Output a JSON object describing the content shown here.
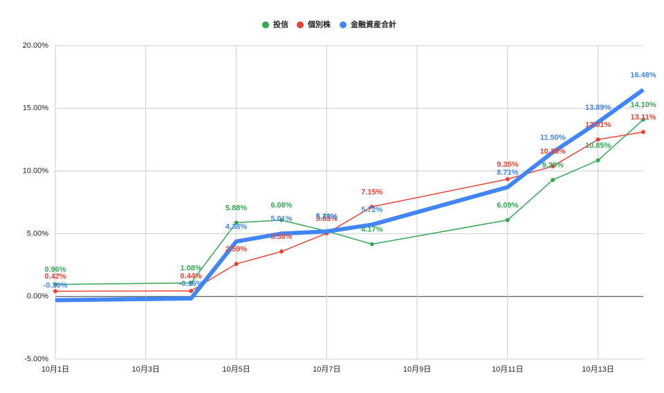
{
  "chart_data": {
    "type": "line",
    "x": [
      "10月1日",
      "10月4日",
      "10月5日",
      "10月6日",
      "10月7日",
      "10月8日",
      "10月11日",
      "10月12日",
      "10月13日",
      "10月14日"
    ],
    "xticks": [
      "10月1日",
      "10月3日",
      "10月5日",
      "10月7日",
      "10月9日",
      "10月11日",
      "10月13日"
    ],
    "ylim": [
      -5,
      20
    ],
    "yticks": [
      {
        "value": -5,
        "label": "-5.00%"
      },
      {
        "value": 0,
        "label": "0.00%"
      },
      {
        "value": 5,
        "label": "5.00%"
      },
      {
        "value": 10,
        "label": "10.00%"
      },
      {
        "value": 15,
        "label": "15.00%"
      },
      {
        "value": 20,
        "label": "20.00%"
      }
    ],
    "grid": true,
    "legend": "top",
    "series": [
      {
        "name": "投信",
        "color": "#34a853",
        "width": 1.5,
        "dots": true,
        "values": [
          0.96,
          1.08,
          5.88,
          6.08,
          5.21,
          4.17,
          6.09,
          9.29,
          10.85,
          14.1
        ],
        "value_labels": [
          "0.96%",
          "1.08%",
          "5.88%",
          "6.08%",
          "5.21%",
          "4.17%",
          "6.09%",
          "9.29%",
          "10.85%",
          "14.10%"
        ]
      },
      {
        "name": "個別株",
        "color": "#ea4335",
        "width": 1.5,
        "dots": true,
        "values": [
          0.42,
          0.44,
          2.59,
          3.58,
          5.03,
          7.15,
          9.35,
          10.38,
          12.51,
          13.11
        ],
        "value_labels": [
          "0.42%",
          "0.44%",
          "2.59%",
          "3.58%",
          "5.03%",
          "7.15%",
          "9.35%",
          "10.38%",
          "12.51%",
          "13.11%"
        ]
      },
      {
        "name": "金融資産合計",
        "color": "#4285f4",
        "width": 6,
        "dots": false,
        "values": [
          -0.3,
          -0.16,
          4.38,
          5.01,
          5.18,
          5.72,
          8.71,
          11.5,
          13.89,
          16.48
        ],
        "value_labels": [
          "-0.30%",
          "-0.16%",
          "4.38%",
          "5.01%",
          "5.18%",
          "5.72%",
          "8.71%",
          "11.50%",
          "13.89%",
          "16.48%"
        ]
      }
    ]
  }
}
